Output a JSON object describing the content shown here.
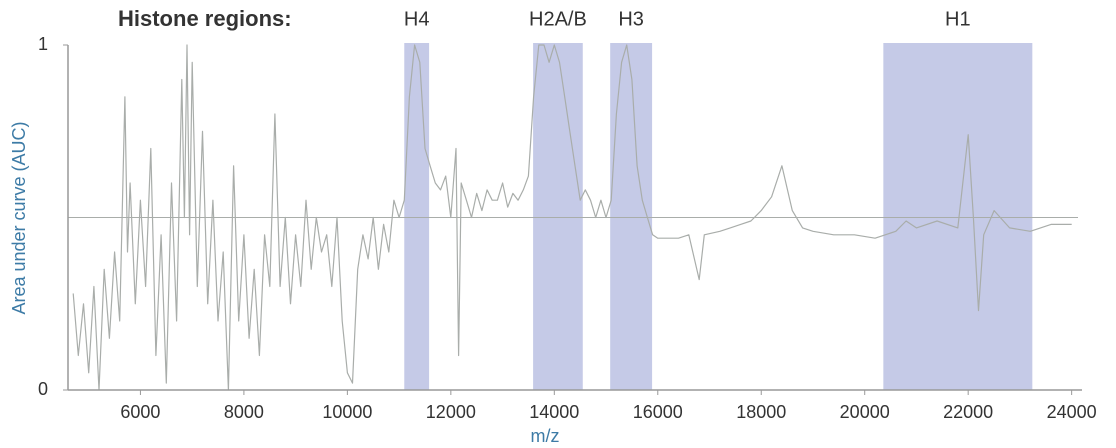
{
  "chart_data": {
    "type": "line",
    "title": "Histone regions:",
    "y_label": "Area under curve (AUC)",
    "x_label": "m/z",
    "xlim": [
      4600,
      24200
    ],
    "xticks": [
      6000,
      8000,
      10000,
      12000,
      14000,
      16000,
      18000,
      20000,
      22000,
      24000
    ],
    "ylim": [
      0,
      1
    ],
    "yticks": [
      0,
      1
    ],
    "color": "#a9adaa",
    "region_color": "#c5cae7",
    "reference_line": 0.5,
    "regions": [
      {
        "label": "H4",
        "start": 11100,
        "end": 11580
      },
      {
        "label": "H2A/B",
        "start": 13590,
        "end": 14550
      },
      {
        "label": "H3",
        "start": 15080,
        "end": 15890
      },
      {
        "label": "H1",
        "start": 20360,
        "end": 23240
      }
    ],
    "x": [
      4700,
      4800,
      4900,
      5000,
      5100,
      5200,
      5300,
      5400,
      5500,
      5600,
      5700,
      5750,
      5800,
      5900,
      6000,
      6100,
      6200,
      6300,
      6400,
      6500,
      6600,
      6700,
      6800,
      6850,
      6900,
      6950,
      7000,
      7100,
      7200,
      7300,
      7400,
      7500,
      7600,
      7700,
      7800,
      7900,
      8000,
      8100,
      8200,
      8300,
      8400,
      8500,
      8600,
      8700,
      8800,
      8900,
      9000,
      9100,
      9200,
      9300,
      9400,
      9500,
      9600,
      9700,
      9800,
      9900,
      10000,
      10100,
      10200,
      10300,
      10400,
      10500,
      10600,
      10700,
      10800,
      10900,
      11000,
      11100,
      11200,
      11300,
      11400,
      11500,
      11600,
      11700,
      11800,
      11900,
      12000,
      12100,
      12150,
      12200,
      12300,
      12400,
      12500,
      12600,
      12700,
      12800,
      12900,
      13000,
      13100,
      13200,
      13300,
      13400,
      13500,
      13600,
      13700,
      13800,
      13900,
      14000,
      14100,
      14200,
      14300,
      14400,
      14500,
      14600,
      14700,
      14800,
      14900,
      15000,
      15100,
      15200,
      15300,
      15400,
      15500,
      15600,
      15700,
      15800,
      15900,
      16000,
      16200,
      16400,
      16600,
      16800,
      16900,
      17200,
      17400,
      17600,
      17800,
      18000,
      18200,
      18400,
      18600,
      18800,
      19000,
      19400,
      19800,
      20200,
      20600,
      20800,
      21000,
      21400,
      21800,
      22000,
      22100,
      22200,
      22300,
      22500,
      22800,
      23200,
      23600,
      24000
    ],
    "values": [
      0.28,
      0.1,
      0.25,
      0.05,
      0.3,
      0.0,
      0.35,
      0.15,
      0.4,
      0.2,
      0.85,
      0.4,
      0.6,
      0.25,
      0.55,
      0.3,
      0.7,
      0.1,
      0.45,
      0.02,
      0.6,
      0.2,
      0.9,
      0.5,
      1.0,
      0.45,
      0.95,
      0.3,
      0.75,
      0.25,
      0.55,
      0.2,
      0.4,
      0.0,
      0.65,
      0.2,
      0.45,
      0.15,
      0.35,
      0.1,
      0.45,
      0.3,
      0.8,
      0.3,
      0.5,
      0.25,
      0.45,
      0.3,
      0.55,
      0.35,
      0.5,
      0.4,
      0.45,
      0.3,
      0.5,
      0.2,
      0.05,
      0.02,
      0.35,
      0.45,
      0.38,
      0.5,
      0.35,
      0.48,
      0.4,
      0.55,
      0.5,
      0.55,
      0.85,
      1.0,
      0.95,
      0.7,
      0.65,
      0.6,
      0.58,
      0.62,
      0.5,
      0.7,
      0.1,
      0.6,
      0.55,
      0.5,
      0.57,
      0.52,
      0.58,
      0.55,
      0.55,
      0.6,
      0.53,
      0.57,
      0.55,
      0.58,
      0.62,
      0.85,
      1.0,
      1.0,
      0.95,
      1.0,
      0.95,
      0.85,
      0.75,
      0.65,
      0.55,
      0.58,
      0.55,
      0.5,
      0.55,
      0.5,
      0.55,
      0.8,
      0.95,
      1.0,
      0.9,
      0.65,
      0.55,
      0.5,
      0.45,
      0.44,
      0.44,
      0.44,
      0.45,
      0.32,
      0.45,
      0.46,
      0.47,
      0.48,
      0.49,
      0.52,
      0.56,
      0.65,
      0.52,
      0.47,
      0.46,
      0.45,
      0.45,
      0.44,
      0.46,
      0.49,
      0.47,
      0.49,
      0.47,
      0.74,
      0.5,
      0.23,
      0.45,
      0.52,
      0.47,
      0.46,
      0.48,
      0.48
    ]
  }
}
